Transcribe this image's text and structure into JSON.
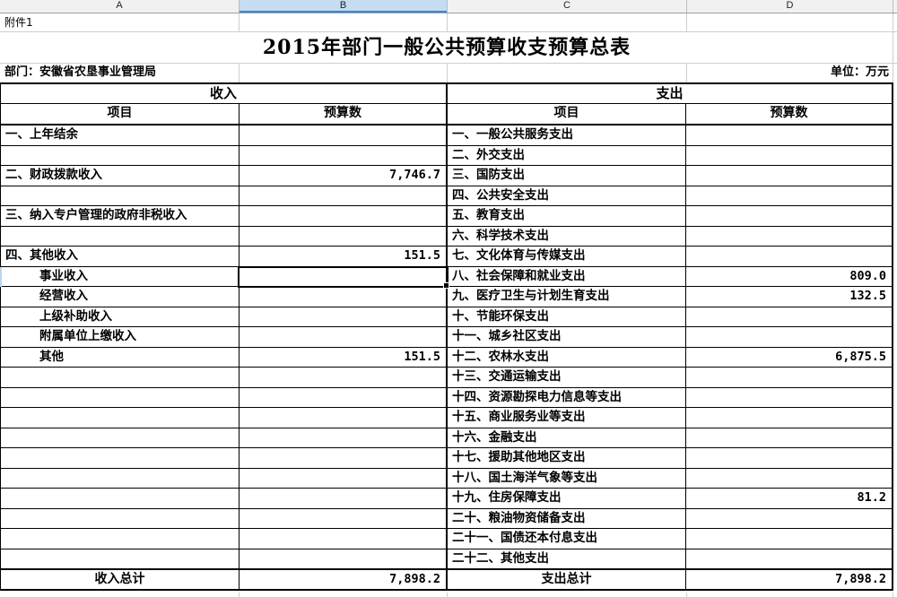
{
  "column_headers": [
    "A",
    "B",
    "C",
    "D"
  ],
  "attachment_note": "附件1",
  "title": "2015年部门一般公共预算收支预算总表",
  "department_label": "部门：安徽省农垦事业管理局",
  "unit_label": "单位：万元",
  "income": {
    "section_title": "收入",
    "item_header": "项目",
    "budget_header": "预算数",
    "rows": [
      {
        "label": "一、上年结余",
        "value": "",
        "indent": 0
      },
      {
        "label": "",
        "value": "",
        "indent": 0
      },
      {
        "label": "二、财政拨款收入",
        "value": "7,746.7",
        "indent": 0
      },
      {
        "label": "",
        "value": "",
        "indent": 0
      },
      {
        "label": "三、纳入专户管理的政府非税收入",
        "value": "",
        "indent": 0
      },
      {
        "label": "",
        "value": "",
        "indent": 0
      },
      {
        "label": "四、其他收入",
        "value": "151.5",
        "indent": 0
      },
      {
        "label": "事业收入",
        "value": "",
        "indent": 1
      },
      {
        "label": "经营收入",
        "value": "",
        "indent": 1
      },
      {
        "label": "上级补助收入",
        "value": "",
        "indent": 1
      },
      {
        "label": "附属单位上缴收入",
        "value": "",
        "indent": 1
      },
      {
        "label": "其他",
        "value": "151.5",
        "indent": 1
      },
      {
        "label": "",
        "value": "",
        "indent": 0
      },
      {
        "label": "",
        "value": "",
        "indent": 0
      },
      {
        "label": "",
        "value": "",
        "indent": 0
      },
      {
        "label": "",
        "value": "",
        "indent": 0
      },
      {
        "label": "",
        "value": "",
        "indent": 0
      },
      {
        "label": "",
        "value": "",
        "indent": 0
      },
      {
        "label": "",
        "value": "",
        "indent": 0
      },
      {
        "label": "",
        "value": "",
        "indent": 0
      },
      {
        "label": "",
        "value": "",
        "indent": 0
      },
      {
        "label": "",
        "value": "",
        "indent": 0
      }
    ],
    "total_label": "收入总计",
    "total_value": "7,898.2"
  },
  "expense": {
    "section_title": "支出",
    "item_header": "项目",
    "budget_header": "预算数",
    "rows": [
      {
        "label": "一、一般公共服务支出",
        "value": "",
        "indent": 0
      },
      {
        "label": "二、外交支出",
        "value": "",
        "indent": 0
      },
      {
        "label": "三、国防支出",
        "value": "",
        "indent": 0
      },
      {
        "label": "四、公共安全支出",
        "value": "",
        "indent": 0
      },
      {
        "label": "五、教育支出",
        "value": "",
        "indent": 0
      },
      {
        "label": "六、科学技术支出",
        "value": "",
        "indent": 0
      },
      {
        "label": "七、文化体育与传媒支出",
        "value": "",
        "indent": 0
      },
      {
        "label": "八、社会保障和就业支出",
        "value": "809.0",
        "indent": 0
      },
      {
        "label": "九、医疗卫生与计划生育支出",
        "value": "132.5",
        "indent": 0
      },
      {
        "label": "十、节能环保支出",
        "value": "",
        "indent": 0
      },
      {
        "label": "十一、城乡社区支出",
        "value": "",
        "indent": 0
      },
      {
        "label": "十二、农林水支出",
        "value": "6,875.5",
        "indent": 0
      },
      {
        "label": "十三、交通运输支出",
        "value": "",
        "indent": 0
      },
      {
        "label": "十四、资源勘探电力信息等支出",
        "value": "",
        "indent": 0
      },
      {
        "label": "十五、商业服务业等支出",
        "value": "",
        "indent": 0
      },
      {
        "label": "十六、金融支出",
        "value": "",
        "indent": 0
      },
      {
        "label": "十七、援助其他地区支出",
        "value": "",
        "indent": 0
      },
      {
        "label": "十八、国土海洋气象等支出",
        "value": "",
        "indent": 0
      },
      {
        "label": "十九、住房保障支出",
        "value": "81.2",
        "indent": 0
      },
      {
        "label": "二十、粮油物资储备支出",
        "value": "",
        "indent": 0
      },
      {
        "label": "二十一、国债还本付息支出",
        "value": "",
        "indent": 0
      },
      {
        "label": "二十二、其他支出",
        "value": "",
        "indent": 0
      }
    ],
    "total_label": "支出总计",
    "total_value": "7,898.2"
  },
  "selection": {
    "column": "B",
    "row_label": "事业收入",
    "row_index": 7
  },
  "colors": {
    "selected_col_header_bg": "#c5dcf1",
    "selected_col_header_underline": "#3a87d4",
    "col_header_bg": "#f1f1f1",
    "grid_line": "#cdcdcd",
    "table_border": "#000000",
    "selection_row_indicator": "#bcd6ee"
  }
}
